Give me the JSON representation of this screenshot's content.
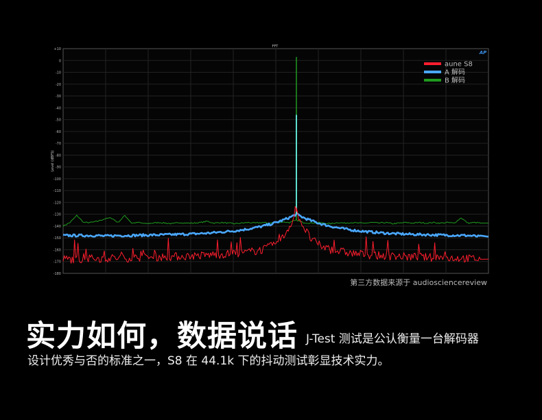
{
  "chart_data": {
    "type": "line",
    "title": "FFT",
    "ylabel": "Level (dBFS)",
    "xlabel": "",
    "ylim": [
      -180,
      10
    ],
    "yticks": [
      "+10",
      "0",
      "-10",
      "-20",
      "-30",
      "-40",
      "-50",
      "-60",
      "-70",
      "-80",
      "-90",
      "-100",
      "-110",
      "-120",
      "-130",
      "-140",
      "-150",
      "-160",
      "-170",
      "-180"
    ],
    "xlim": [
      -34,
      28
    ],
    "grid": true,
    "legend_position": "top-right",
    "logo": "AP",
    "series": [
      {
        "name": "aune S8",
        "color": "#ff1e2e",
        "peak": -125,
        "values": [
          -168,
          -168,
          -168,
          -168,
          -167.5,
          -167.5,
          -167.5,
          -167,
          -167,
          -167,
          -167,
          -166.5,
          -166.5,
          -166.5,
          -166,
          -166,
          -166,
          -165.5,
          -165.5,
          -165,
          -165,
          -164.5,
          -164,
          -164,
          -163.5,
          -163,
          -163,
          -162,
          -161,
          -160,
          -158,
          -155,
          -150,
          -140,
          -128,
          -140,
          -150,
          -155,
          -158,
          -160,
          -161,
          -162,
          -163,
          -163.5,
          -164,
          -164.5,
          -165,
          -165,
          -165.5,
          -165.5,
          -166,
          -166,
          -166,
          -166.5,
          -166.5,
          -166.5,
          -167,
          -167,
          -167,
          -167.5,
          -167.5,
          -168
        ]
      },
      {
        "name": "A 解码",
        "color": "#4aa8ff",
        "peak": -46,
        "values": [
          -148,
          -148,
          -148,
          -148,
          -148,
          -148,
          -148.5,
          -148.3,
          -148,
          -148,
          -147.9,
          -147.8,
          -147.7,
          -147.6,
          -147.5,
          -147.3,
          -147.2,
          -147,
          -146.8,
          -146.6,
          -146.3,
          -146,
          -145.6,
          -145.1,
          -144.6,
          -144,
          -143.3,
          -142.4,
          -141.4,
          -140.2,
          -138.8,
          -137.1,
          -135.1,
          -132.8,
          -130,
          -132.8,
          -135.1,
          -137.1,
          -138.8,
          -140.2,
          -141.4,
          -142.4,
          -143.3,
          -144,
          -144.6,
          -145.1,
          -145.6,
          -146,
          -146.3,
          -146.6,
          -146.8,
          -147,
          -147.2,
          -147.3,
          -147.5,
          -147.6,
          -147.7,
          -147.8,
          -147.9,
          -148,
          -148.5,
          -149
        ]
      },
      {
        "name": "B 解码",
        "color": "#1f9a1f",
        "peak": 3,
        "values": [
          -140,
          -137,
          -131,
          -137,
          -137,
          -136,
          -134,
          -133,
          -137,
          -131,
          -137.5,
          -137,
          -138,
          -137.5,
          -137,
          -137.5,
          -138,
          -137,
          -137.5,
          -137.5,
          -137,
          -136,
          -137.5,
          -137,
          -137.5,
          -138,
          -137.5,
          -137,
          -137.5,
          -137,
          -137.5,
          -137,
          -136.5,
          -137,
          -135,
          -137,
          -137.5,
          -137,
          -137.5,
          -138,
          -137,
          -137.5,
          -137,
          -137.5,
          -137.5,
          -137,
          -137.5,
          -137,
          -138,
          -137.5,
          -137,
          -137.5,
          -137,
          -137.5,
          -137,
          -137.5,
          -137,
          -137.5,
          -133,
          -137.5,
          -137,
          -137.5
        ]
      }
    ]
  },
  "source": "第三方数据来源于 audiosciencereview",
  "headline": "实力如何，数据说话",
  "subtitle_line1": "J-Test 测试是公认衡量一台解码器",
  "subtitle_line2": "设计优秀与否的标准之一，S8 在 44.1k 下的抖动测试彰显技术实力。"
}
